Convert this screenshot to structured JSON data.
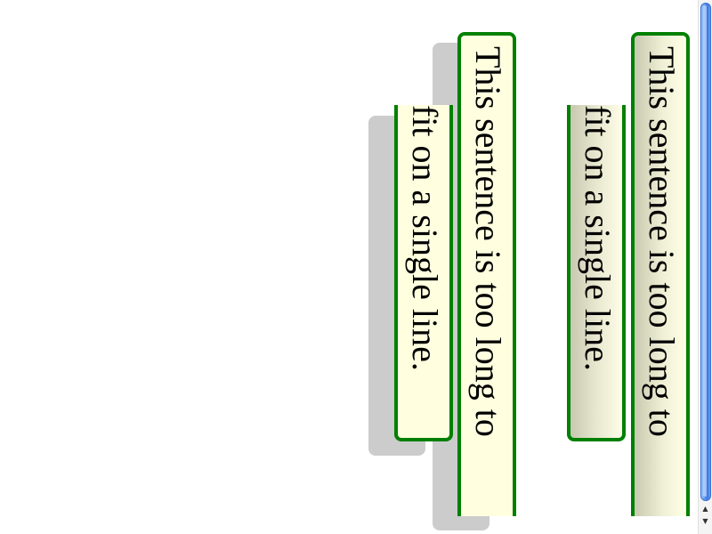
{
  "boxes": {
    "primary_sentence": "This sentence is too long to",
    "secondary_sentence": "fit on a single line."
  },
  "scrollbar": {
    "up_arrow_icon": "triangle-up",
    "down_arrow_icon": "triangle-down",
    "thumb_color": "#3a78e0"
  },
  "colors": {
    "border": "#008000",
    "box_background": "#ffffe0",
    "shadow": "#cccccc"
  }
}
